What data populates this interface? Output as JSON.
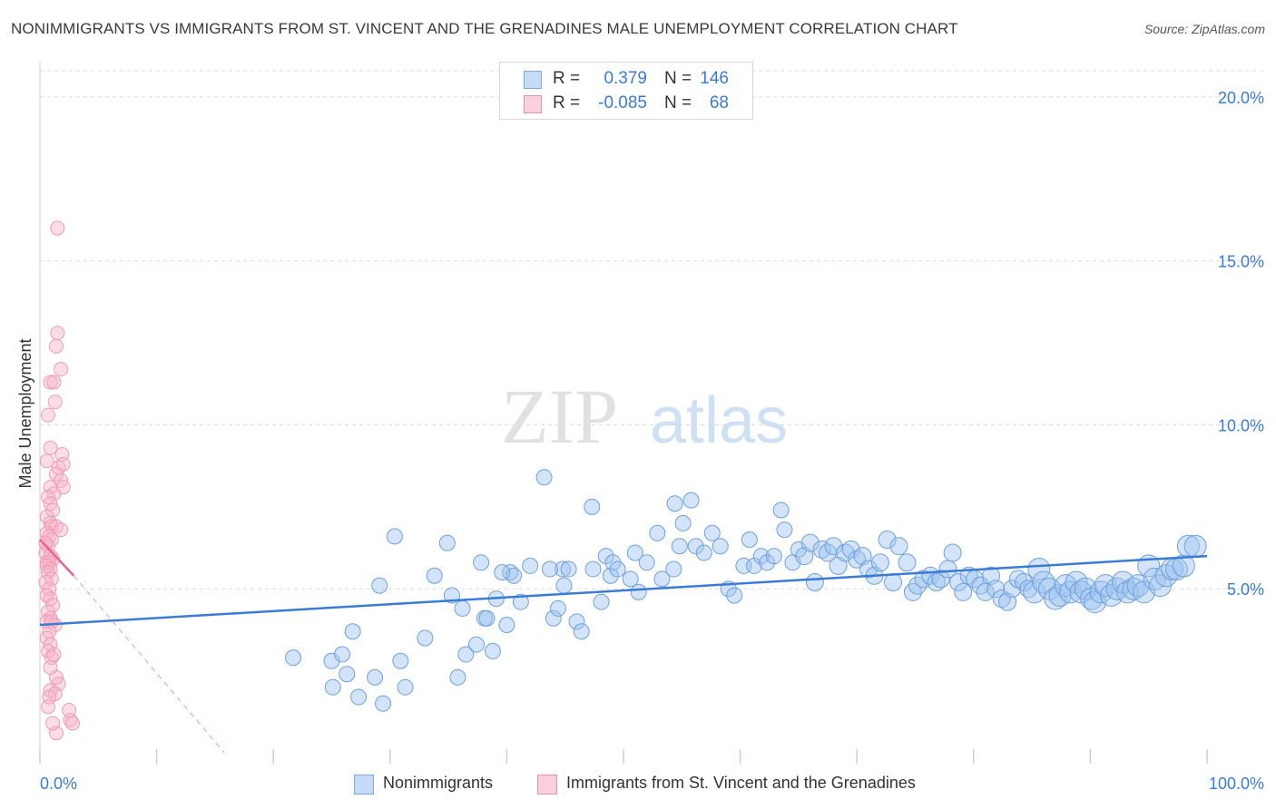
{
  "header": {
    "title": "NONIMMIGRANTS VS IMMIGRANTS FROM ST. VINCENT AND THE GRENADINES MALE UNEMPLOYMENT CORRELATION CHART",
    "source": "Source: ZipAtlas.com"
  },
  "legend_top": {
    "rows": [
      {
        "r_label": "R =",
        "r_value": "0.379",
        "n_label": "N =",
        "n_value": "146",
        "color": "#9dc3f0"
      },
      {
        "r_label": "R =",
        "r_value": "-0.085",
        "n_label": "N =",
        "n_value": "68",
        "color": "#f6b3c8"
      }
    ]
  },
  "legend_bottom": {
    "items": [
      {
        "label": "Nonimmigrants",
        "color": "#9dc3f0"
      },
      {
        "label": "Immigrants from St. Vincent and the Grenadines",
        "color": "#f6b3c8"
      }
    ]
  },
  "watermark": {
    "zip": "ZIP",
    "atlas": "atlas"
  },
  "chart_data": {
    "type": "scatter",
    "title": "NONIMMIGRANTS VS IMMIGRANTS FROM ST. VINCENT AND THE GRENADINES MALE UNEMPLOYMENT CORRELATION CHART",
    "xlabel": "",
    "ylabel": "Male Unemployment",
    "xlim": [
      0,
      100
    ],
    "ylim": [
      0,
      20.8
    ],
    "x_tick_labels": [
      "0.0%",
      "100.0%"
    ],
    "y_ticks": [
      5,
      10,
      15,
      20
    ],
    "y_tick_labels": [
      "5.0%",
      "10.0%",
      "15.0%",
      "20.0%"
    ],
    "grid": true,
    "colors": {
      "blue": "#3a7bd5",
      "blue_fill": "#9dc3f0",
      "pink": "#e9648f",
      "pink_fill": "#f6b3c8"
    },
    "series": [
      {
        "name": "Nonimmigrants",
        "color": "#9dc3f0",
        "trend": {
          "x": [
            0,
            100
          ],
          "y": [
            3.9,
            6.0
          ]
        },
        "points": [
          [
            21.7,
            2.9
          ],
          [
            25.0,
            2.8
          ],
          [
            25.9,
            3.0
          ],
          [
            25.1,
            2.0
          ],
          [
            26.3,
            2.4
          ],
          [
            26.8,
            3.7
          ],
          [
            27.3,
            1.7
          ],
          [
            28.7,
            2.3
          ],
          [
            29.1,
            5.1
          ],
          [
            29.4,
            1.5
          ],
          [
            30.4,
            6.6
          ],
          [
            30.9,
            2.8
          ],
          [
            31.3,
            2.0
          ],
          [
            33.0,
            3.5
          ],
          [
            33.8,
            5.4
          ],
          [
            34.9,
            6.4
          ],
          [
            35.3,
            4.8
          ],
          [
            35.8,
            2.3
          ],
          [
            36.2,
            4.4
          ],
          [
            36.5,
            3.0
          ],
          [
            37.4,
            3.3
          ],
          [
            37.8,
            5.8
          ],
          [
            38.1,
            4.1
          ],
          [
            38.8,
            3.1
          ],
          [
            39.1,
            4.7
          ],
          [
            40.0,
            3.9
          ],
          [
            40.3,
            5.5
          ],
          [
            40.6,
            5.4
          ],
          [
            41.2,
            4.6
          ],
          [
            42.0,
            5.7
          ],
          [
            43.2,
            8.4
          ],
          [
            44.0,
            4.1
          ],
          [
            44.4,
            4.4
          ],
          [
            44.8,
            5.6
          ],
          [
            45.3,
            5.6
          ],
          [
            46.0,
            4.0
          ],
          [
            46.4,
            3.7
          ],
          [
            47.3,
            7.5
          ],
          [
            47.4,
            5.6
          ],
          [
            48.1,
            4.6
          ],
          [
            48.5,
            6.0
          ],
          [
            48.9,
            5.4
          ],
          [
            49.1,
            5.8
          ],
          [
            49.5,
            5.6
          ],
          [
            50.6,
            5.3
          ],
          [
            51.0,
            6.1
          ],
          [
            51.3,
            4.9
          ],
          [
            52.0,
            5.8
          ],
          [
            52.9,
            6.7
          ],
          [
            53.3,
            5.3
          ],
          [
            54.4,
            7.6
          ],
          [
            54.8,
            6.3
          ],
          [
            54.3,
            5.6
          ],
          [
            55.1,
            7.0
          ],
          [
            55.8,
            7.7
          ],
          [
            56.2,
            6.3
          ],
          [
            56.9,
            6.1
          ],
          [
            57.6,
            6.7
          ],
          [
            58.3,
            6.3
          ],
          [
            59.0,
            5.0
          ],
          [
            59.5,
            4.8
          ],
          [
            60.3,
            5.7
          ],
          [
            60.8,
            6.5
          ],
          [
            61.2,
            5.7
          ],
          [
            61.8,
            6.0
          ],
          [
            62.3,
            5.8
          ],
          [
            62.9,
            6.0
          ],
          [
            63.5,
            7.4
          ],
          [
            63.8,
            6.8
          ],
          [
            64.5,
            5.8
          ],
          [
            65.0,
            6.2
          ],
          [
            65.5,
            6.0
          ],
          [
            66.0,
            6.4
          ],
          [
            66.4,
            5.2
          ],
          [
            67.0,
            6.2
          ],
          [
            67.5,
            6.1
          ],
          [
            68.0,
            6.3
          ],
          [
            68.4,
            5.7
          ],
          [
            69.0,
            6.1
          ],
          [
            69.5,
            6.2
          ],
          [
            70.0,
            5.9
          ],
          [
            70.5,
            6.0
          ],
          [
            71.0,
            5.6
          ],
          [
            71.5,
            5.4
          ],
          [
            72.0,
            5.8
          ],
          [
            72.6,
            6.5
          ],
          [
            73.1,
            5.2
          ],
          [
            73.6,
            6.3
          ],
          [
            74.3,
            5.8
          ],
          [
            74.8,
            4.9
          ],
          [
            75.2,
            5.1
          ],
          [
            75.7,
            5.3
          ],
          [
            76.3,
            5.4
          ],
          [
            76.8,
            5.2
          ],
          [
            77.2,
            5.3
          ],
          [
            77.8,
            5.6
          ],
          [
            78.2,
            6.1
          ],
          [
            78.7,
            5.2
          ],
          [
            79.1,
            4.9
          ],
          [
            79.6,
            5.4
          ],
          [
            80.1,
            5.3
          ],
          [
            80.6,
            5.1
          ],
          [
            81.0,
            4.9
          ],
          [
            81.5,
            5.4
          ],
          [
            81.9,
            5.0
          ],
          [
            82.4,
            4.7
          ],
          [
            82.9,
            4.6
          ],
          [
            83.3,
            5.0
          ],
          [
            83.8,
            5.3
          ],
          [
            84.3,
            5.2
          ],
          [
            84.7,
            5.0
          ],
          [
            85.2,
            4.9
          ],
          [
            85.6,
            5.6
          ],
          [
            86.0,
            5.2
          ],
          [
            86.5,
            5.0
          ],
          [
            87.0,
            4.7
          ],
          [
            87.4,
            4.8
          ],
          [
            87.9,
            5.1
          ],
          [
            88.3,
            4.9
          ],
          [
            88.8,
            5.2
          ],
          [
            89.2,
            4.9
          ],
          [
            89.6,
            5.0
          ],
          [
            90.1,
            4.7
          ],
          [
            90.4,
            4.6
          ],
          [
            90.9,
            4.9
          ],
          [
            91.3,
            5.1
          ],
          [
            91.8,
            4.8
          ],
          [
            92.3,
            5.0
          ],
          [
            92.8,
            5.2
          ],
          [
            93.2,
            4.9
          ],
          [
            93.7,
            5.0
          ],
          [
            94.1,
            5.1
          ],
          [
            94.6,
            4.9
          ],
          [
            95.0,
            5.7
          ],
          [
            95.5,
            5.3
          ],
          [
            96.0,
            5.1
          ],
          [
            96.5,
            5.4
          ],
          [
            97.0,
            5.6
          ],
          [
            97.4,
            5.6
          ],
          [
            98.0,
            5.7
          ],
          [
            98.4,
            6.3
          ],
          [
            99.0,
            6.3
          ],
          [
            43.7,
            5.6
          ],
          [
            44.9,
            5.1
          ],
          [
            39.6,
            5.5
          ],
          [
            38.3,
            4.1
          ]
        ]
      },
      {
        "name": "Immigrants from St. Vincent and the Grenadines",
        "color": "#f6b3c8",
        "trend": {
          "x": [
            0,
            2.9
          ],
          "y": [
            6.5,
            5.4
          ],
          "dashed_to": [
            15.8,
            0
          ]
        },
        "points": [
          [
            1.5,
            16.0
          ],
          [
            1.5,
            12.8
          ],
          [
            1.4,
            12.4
          ],
          [
            1.8,
            11.7
          ],
          [
            0.9,
            11.3
          ],
          [
            1.2,
            11.3
          ],
          [
            1.3,
            10.7
          ],
          [
            0.7,
            10.3
          ],
          [
            0.9,
            9.3
          ],
          [
            1.9,
            9.1
          ],
          [
            0.6,
            8.9
          ],
          [
            1.6,
            8.7
          ],
          [
            2.0,
            8.8
          ],
          [
            1.4,
            8.5
          ],
          [
            1.8,
            8.3
          ],
          [
            0.9,
            8.1
          ],
          [
            1.2,
            7.9
          ],
          [
            2.0,
            8.1
          ],
          [
            0.7,
            7.8
          ],
          [
            0.9,
            7.6
          ],
          [
            1.1,
            7.4
          ],
          [
            0.6,
            7.2
          ],
          [
            0.9,
            7.0
          ],
          [
            1.0,
            6.9
          ],
          [
            1.4,
            6.9
          ],
          [
            1.8,
            6.8
          ],
          [
            0.6,
            6.7
          ],
          [
            0.8,
            6.6
          ],
          [
            1.0,
            6.5
          ],
          [
            0.7,
            6.3
          ],
          [
            0.5,
            6.1
          ],
          [
            0.9,
            6.0
          ],
          [
            1.1,
            5.9
          ],
          [
            0.6,
            5.8
          ],
          [
            0.8,
            5.8
          ],
          [
            0.6,
            5.7
          ],
          [
            0.9,
            5.6
          ],
          [
            0.7,
            5.5
          ],
          [
            1.0,
            5.3
          ],
          [
            0.5,
            5.2
          ],
          [
            0.8,
            5.0
          ],
          [
            0.6,
            4.8
          ],
          [
            0.9,
            4.7
          ],
          [
            1.1,
            4.5
          ],
          [
            0.7,
            4.3
          ],
          [
            0.9,
            4.1
          ],
          [
            0.6,
            4.0
          ],
          [
            1.0,
            4.0
          ],
          [
            1.3,
            3.9
          ],
          [
            0.8,
            3.7
          ],
          [
            0.6,
            3.5
          ],
          [
            0.9,
            3.3
          ],
          [
            0.7,
            3.1
          ],
          [
            1.0,
            2.9
          ],
          [
            1.4,
            2.3
          ],
          [
            1.6,
            2.1
          ],
          [
            0.9,
            1.9
          ],
          [
            1.3,
            1.8
          ],
          [
            0.8,
            1.7
          ],
          [
            0.7,
            1.4
          ],
          [
            2.6,
            1.0
          ],
          [
            2.8,
            0.9
          ],
          [
            1.4,
            0.6
          ],
          [
            2.5,
            1.3
          ],
          [
            1.1,
            0.9
          ],
          [
            0.9,
            2.6
          ],
          [
            1.2,
            3.0
          ],
          [
            0.5,
            6.4
          ]
        ]
      }
    ]
  }
}
